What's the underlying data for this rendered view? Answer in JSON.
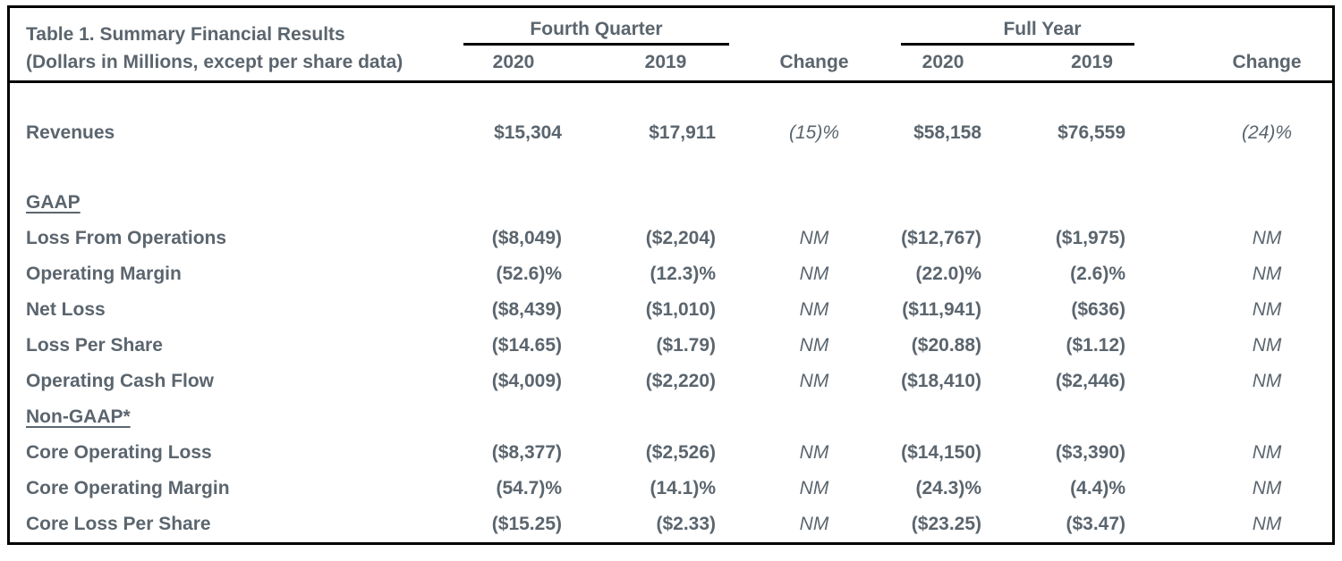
{
  "colors": {
    "text": "#5b656e",
    "border": "#000000",
    "background": "#ffffff"
  },
  "table": {
    "title": "Table 1. Summary Financial Results",
    "subtitle": "(Dollars in Millions, except per share data)",
    "groups": [
      {
        "label": "Fourth Quarter",
        "years": [
          "2020",
          "2019"
        ],
        "change_label": "Change"
      },
      {
        "label": "Full Year",
        "years": [
          "2020",
          "2019"
        ],
        "change_label": "Change"
      }
    ],
    "rows": [
      {
        "type": "spacer"
      },
      {
        "type": "data",
        "label": "Revenues",
        "values": [
          "$15,304",
          "$17,911",
          "(15)%",
          "$58,158",
          "$76,559",
          "(24)%"
        ]
      },
      {
        "type": "spacer"
      },
      {
        "type": "section",
        "label": "GAAP"
      },
      {
        "type": "data",
        "label": "Loss From Operations",
        "values": [
          "($8,049)",
          "($2,204)",
          "NM",
          "($12,767)",
          "($1,975)",
          "NM"
        ]
      },
      {
        "type": "data",
        "label": "Operating Margin",
        "values": [
          "(52.6)%",
          "(12.3)%",
          "NM",
          "(22.0)%",
          "(2.6)%",
          "NM"
        ]
      },
      {
        "type": "data",
        "label": "Net Loss",
        "values": [
          "($8,439)",
          "($1,010)",
          "NM",
          "($11,941)",
          "($636)",
          "NM"
        ]
      },
      {
        "type": "data",
        "label": "Loss Per Share",
        "values": [
          "($14.65)",
          "($1.79)",
          "NM",
          "($20.88)",
          "($1.12)",
          "NM"
        ]
      },
      {
        "type": "data",
        "label": "Operating Cash Flow",
        "values": [
          "($4,009)",
          "($2,220)",
          "NM",
          "($18,410)",
          "($2,446)",
          "NM"
        ]
      },
      {
        "type": "section",
        "label": "Non-GAAP*"
      },
      {
        "type": "data",
        "label": "Core Operating Loss",
        "values": [
          "($8,377)",
          "($2,526)",
          "NM",
          "($14,150)",
          "($3,390)",
          "NM"
        ]
      },
      {
        "type": "data",
        "label": "Core Operating Margin",
        "values": [
          "(54.7)%",
          "(14.1)%",
          "NM",
          "(24.3)%",
          "(4.4)%",
          "NM"
        ]
      },
      {
        "type": "data",
        "label": "Core Loss Per Share",
        "values": [
          "($15.25)",
          "($2.33)",
          "NM",
          "($23.25)",
          "($3.47)",
          "NM"
        ]
      }
    ]
  }
}
